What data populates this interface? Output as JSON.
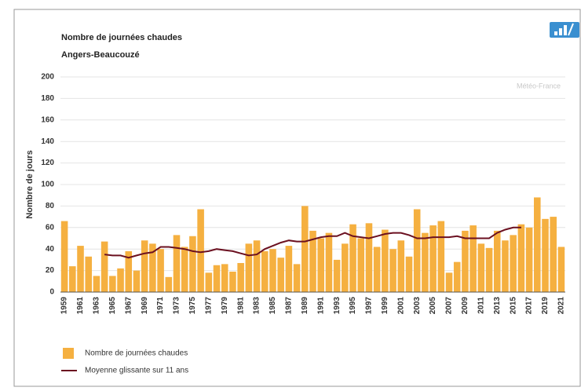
{
  "chart_data": {
    "type": "bar",
    "title": "Nombre de journées chaudes",
    "subtitle": "Angers-Beaucouzé",
    "watermark": "Météo-France",
    "ylabel": "Nombre de jours",
    "categories": [
      "1959",
      null,
      "1961",
      null,
      "1963",
      null,
      "1965",
      null,
      "1967",
      null,
      "1969",
      null,
      "1971",
      null,
      "1973",
      null,
      "1975",
      null,
      "1977",
      null,
      "1979",
      null,
      "1981",
      null,
      "1983",
      null,
      "1985",
      null,
      "1987",
      null,
      "1989",
      null,
      "1991",
      null,
      "1993",
      null,
      "1995",
      null,
      "1997",
      null,
      "1999",
      null,
      "2001",
      null,
      "2003",
      null,
      "2005",
      null,
      "2007",
      null,
      "2009",
      null,
      "2011",
      null,
      "2013",
      null,
      "2015",
      null,
      "2017",
      null,
      "2019",
      null,
      "2021"
    ],
    "series": [
      {
        "name": "Nombre de journées chaudes",
        "type": "bar",
        "color": "#f5b040",
        "values": [
          66,
          24,
          43,
          33,
          15,
          47,
          15,
          22,
          38,
          20,
          48,
          45,
          40,
          14,
          53,
          42,
          52,
          77,
          18,
          25,
          26,
          19,
          27,
          45,
          48,
          38,
          40,
          32,
          43,
          26,
          80,
          57,
          50,
          55,
          30,
          45,
          63,
          50,
          64,
          42,
          58,
          40,
          48,
          33,
          77,
          55,
          62,
          66,
          18,
          28,
          57,
          62,
          45,
          41,
          57,
          48,
          53,
          63,
          60,
          88,
          68,
          70,
          42
        ]
      },
      {
        "name": "Moyenne glissante sur 11 ans",
        "type": "line",
        "color": "#6b1020",
        "values": [
          null,
          null,
          null,
          null,
          null,
          35,
          34,
          34,
          32,
          34,
          36,
          37,
          42,
          42,
          41,
          40,
          38,
          37,
          38,
          40,
          39,
          38,
          36,
          34,
          35,
          40,
          43,
          46,
          48,
          47,
          47,
          49,
          51,
          52,
          52,
          55,
          52,
          51,
          50,
          52,
          54,
          55,
          55,
          53,
          50,
          50,
          51,
          51,
          51,
          52,
          50,
          50,
          50,
          50,
          55,
          58,
          60,
          60,
          null,
          null,
          null,
          null,
          null
        ]
      }
    ],
    "ylim": [
      0,
      200
    ],
    "yticks": [
      0,
      20,
      40,
      60,
      80,
      100,
      120,
      140,
      160,
      180,
      200
    ],
    "grid": true,
    "legend": "bottom-left"
  }
}
